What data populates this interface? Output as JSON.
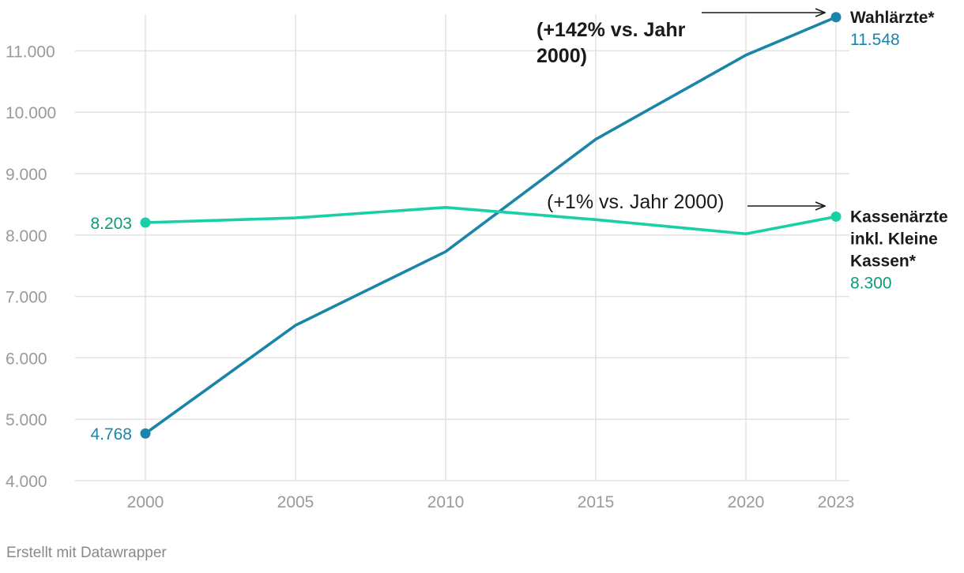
{
  "chart_data": {
    "type": "line",
    "x": [
      2000,
      2005,
      2010,
      2015,
      2020,
      2023
    ],
    "x_ticks": [
      "2000",
      "2005",
      "2010",
      "2015",
      "2020",
      "2023"
    ],
    "y_ticks": [
      "4.000",
      "5.000",
      "6.000",
      "7.000",
      "8.000",
      "9.000",
      "10.000",
      "11.000"
    ],
    "ylim": [
      4000,
      11600
    ],
    "grid": true,
    "series": [
      {
        "name_lines": [
          "Wahlärzte*"
        ],
        "values": [
          4768,
          6530,
          7730,
          9560,
          10930,
          11548
        ],
        "color": "#1a85a8",
        "start_label": "4.768",
        "end_label": "11.548"
      },
      {
        "name_lines": [
          "Kassenärzte",
          "inkl. Kleine",
          "Kassen*"
        ],
        "values": [
          8203,
          8280,
          8450,
          8250,
          8020,
          8300
        ],
        "color": "#19cfa5",
        "value_label_color": "#0e9a78",
        "start_label": "8.203",
        "end_label": "8.300"
      }
    ],
    "annotations": [
      {
        "lines": [
          "(+142% vs. Jahr",
          "2000)"
        ],
        "bold": true
      },
      {
        "lines": [
          "(+1% vs. Jahr 2000)"
        ],
        "bold": false
      }
    ]
  },
  "footer": {
    "credit": "Erstellt mit Datawrapper"
  }
}
